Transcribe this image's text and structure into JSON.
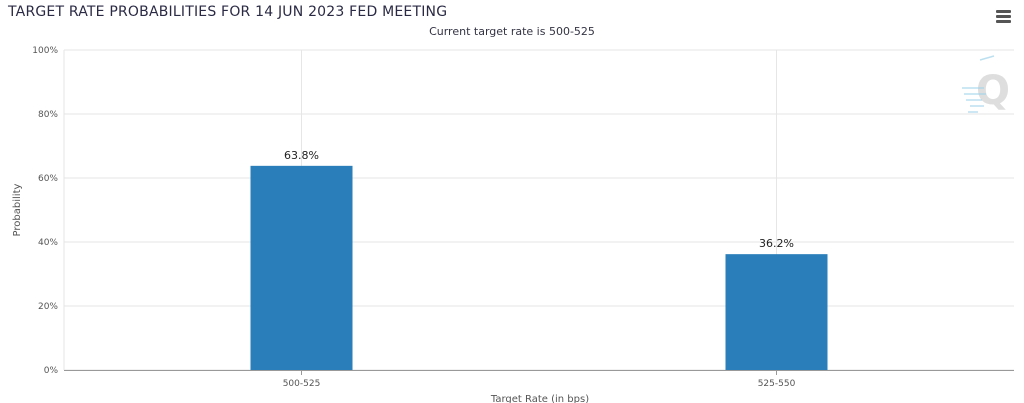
{
  "header": {
    "title": "TARGET RATE PROBABILITIES FOR 14 JUN 2023 FED MEETING",
    "subtitle": "Current target rate is 500-525"
  },
  "chart_data": {
    "type": "bar",
    "title": "TARGET RATE PROBABILITIES FOR 14 JUN 2023 FED MEETING",
    "subtitle": "Current target rate is 500-525",
    "categories": [
      "500-525",
      "525-550"
    ],
    "values": [
      63.8,
      36.2
    ],
    "data_labels": [
      "63.8%",
      "36.2%"
    ],
    "xlabel": "Target Rate (in bps)",
    "ylabel": "Probability",
    "ylim": [
      0,
      100
    ],
    "yticks": [
      "0%",
      "20%",
      "40%",
      "60%",
      "80%",
      "100%"
    ],
    "grid": true,
    "bar_color": "#2a7fba",
    "legend": "none"
  },
  "colors": {
    "bar": "#2a7fba",
    "grid": "#e6e6e6",
    "axis": "#999999"
  },
  "icons": {
    "menu": "hamburger-menu-icon",
    "watermark": "q-watermark-logo"
  }
}
